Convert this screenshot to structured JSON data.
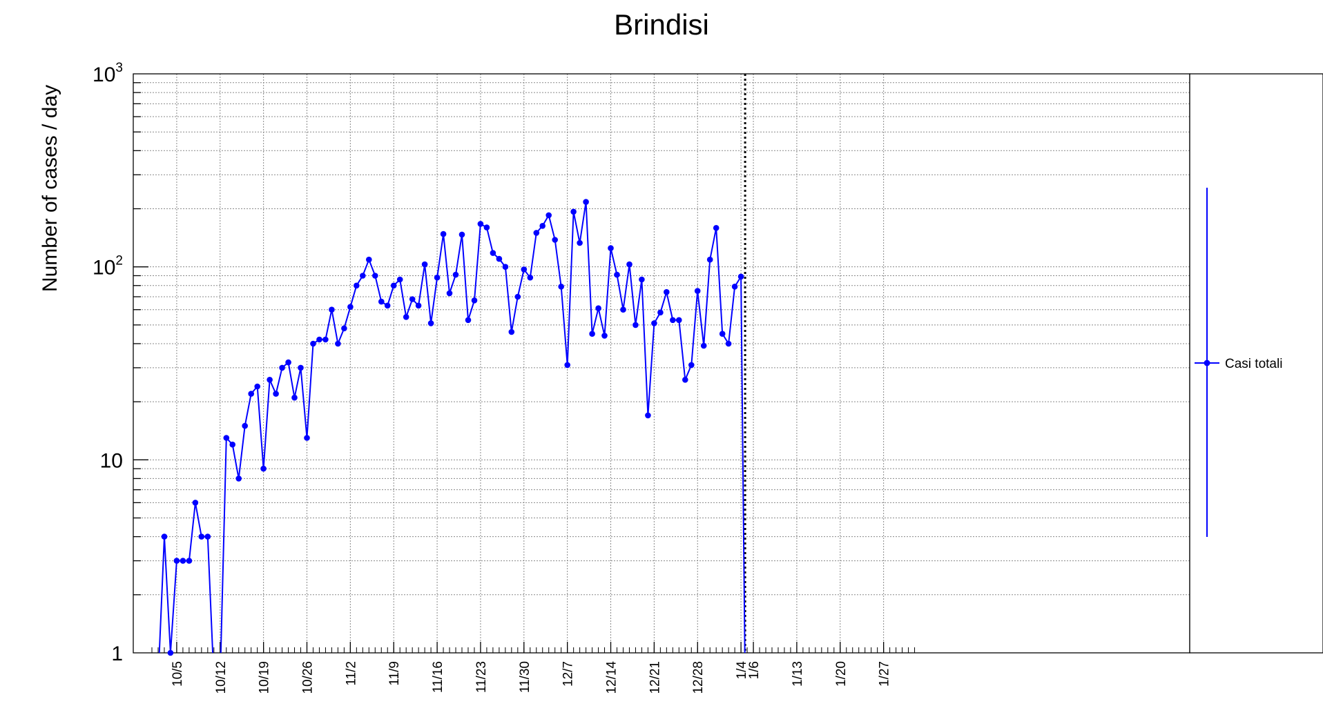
{
  "chart_data": {
    "type": "line",
    "title": "Brindisi",
    "xlabel": "",
    "ylabel": "Number of cases / day",
    "y_scale": "log",
    "ylim": [
      1,
      1000
    ],
    "y_ticks": [
      {
        "value": 1,
        "label": "1",
        "exp": ""
      },
      {
        "value": 10,
        "label": "10",
        "exp": ""
      },
      {
        "value": 100,
        "label": "10",
        "exp": "2"
      },
      {
        "value": 1000,
        "label": "10",
        "exp": "3"
      }
    ],
    "x_tick_labels": [
      "10/5",
      "10/12",
      "10/19",
      "10/26",
      "11/2",
      "11/9",
      "11/16",
      "11/23",
      "11/30",
      "12/7",
      "12/14",
      "12/21",
      "12/28",
      "1/4",
      "1/6",
      "1/13",
      "1/20",
      "1/27"
    ],
    "grid": true,
    "legend_position": "right",
    "colors": {
      "series": "#0000ff",
      "axis": "#000000",
      "grid": "#888888",
      "marker_line": "#000000"
    },
    "series": [
      {
        "name": "Casi totali",
        "x": [
          "10/1",
          "10/2",
          "10/3",
          "10/4",
          "10/5",
          "10/6",
          "10/7",
          "10/8",
          "10/9",
          "10/10",
          "10/11",
          "10/12",
          "10/13",
          "10/14",
          "10/15",
          "10/16",
          "10/17",
          "10/18",
          "10/19",
          "10/20",
          "10/21",
          "10/22",
          "10/23",
          "10/24",
          "10/25",
          "10/26",
          "10/27",
          "10/28",
          "10/29",
          "10/30",
          "10/31",
          "11/1",
          "11/2",
          "11/3",
          "11/4",
          "11/5",
          "11/6",
          "11/7",
          "11/8",
          "11/9",
          "11/10",
          "11/11",
          "11/12",
          "11/13",
          "11/14",
          "11/15",
          "11/16",
          "11/17",
          "11/18",
          "11/19",
          "11/20",
          "11/21",
          "11/22",
          "11/23",
          "11/24",
          "11/25",
          "11/26",
          "11/27",
          "11/28",
          "11/29",
          "11/30",
          "12/1",
          "12/2",
          "12/3",
          "12/4",
          "12/5",
          "12/6",
          "12/7",
          "12/8",
          "12/9",
          "12/10",
          "12/11",
          "12/12",
          "12/13",
          "12/14",
          "12/15",
          "12/16",
          "12/17",
          "12/18",
          "12/19",
          "12/20",
          "12/21",
          "12/22",
          "12/23",
          "12/24",
          "12/25",
          "12/26",
          "12/27",
          "12/28",
          "12/29",
          "12/30",
          "12/31",
          "1/1",
          "1/2",
          "1/3",
          "1/4"
        ],
        "values": [
          0,
          0,
          4,
          1,
          3,
          3,
          3,
          6,
          4,
          4,
          0,
          0,
          13,
          12,
          8,
          15,
          22,
          24,
          9,
          26,
          22,
          30,
          32,
          21,
          30,
          13,
          40,
          42,
          42,
          60,
          40,
          48,
          62,
          80,
          90,
          109,
          90,
          66,
          63,
          80,
          86,
          55,
          68,
          63,
          103,
          51,
          88,
          148,
          73,
          91,
          147,
          53,
          67,
          167,
          160,
          118,
          110,
          100,
          46,
          70,
          97,
          88,
          150,
          163,
          185,
          138,
          79,
          31,
          193,
          133,
          217,
          45,
          61,
          44,
          125,
          91,
          60,
          103,
          50,
          86,
          17,
          51,
          58,
          74,
          53,
          53,
          26,
          31,
          75,
          39,
          109,
          159,
          45,
          40,
          79,
          89
        ]
      }
    ],
    "reference_line": {
      "x": "1/4",
      "style": "dotted"
    }
  }
}
